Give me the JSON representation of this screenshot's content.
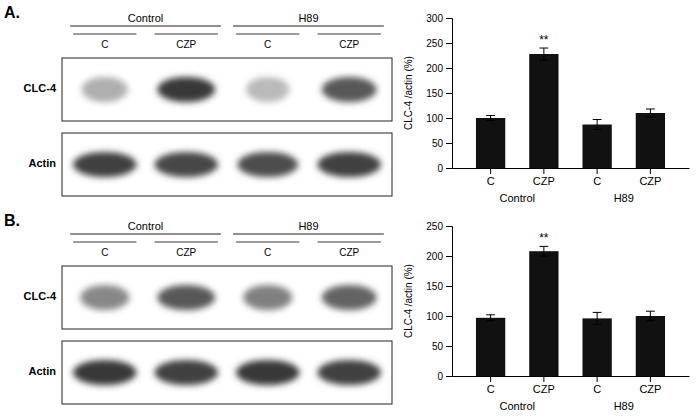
{
  "chart_data": [
    {
      "type": "western_blot",
      "title": "A.",
      "categories": [
        "C",
        "CZP",
        "C",
        "CZP"
      ],
      "group_labels": [
        "Control",
        "H89"
      ],
      "series": [
        {
          "name": "CLC-4",
          "values": [
            0.42,
            0.82,
            0.38,
            0.72
          ],
          "widths": [
            0.8,
            1.0,
            0.75,
            0.95
          ]
        },
        {
          "name": "Actin",
          "values": [
            0.8,
            0.78,
            0.76,
            0.8
          ],
          "widths": [
            1.1,
            1.1,
            1.05,
            1.1
          ]
        }
      ]
    },
    {
      "type": "bar",
      "categories": [
        "C",
        "CZP",
        "C",
        "CZP"
      ],
      "values": [
        100,
        228,
        87,
        110
      ],
      "errors": [
        5,
        12,
        10,
        8
      ],
      "color": "#111111",
      "group_labels": [
        "Control",
        "H89"
      ],
      "ylabel": "CLC-4 /actin (%)",
      "ylim": [
        0,
        300
      ],
      "yticks": [
        0,
        50,
        100,
        150,
        200,
        250,
        300
      ],
      "annotations": [
        {
          "text": "**",
          "index": 1
        }
      ],
      "grid": false
    },
    {
      "type": "western_blot",
      "title": "B.",
      "categories": [
        "C",
        "CZP",
        "C",
        "CZP"
      ],
      "group_labels": [
        "Control",
        "H89"
      ],
      "series": [
        {
          "name": "CLC-4",
          "values": [
            0.55,
            0.72,
            0.58,
            0.68
          ],
          "widths": [
            0.85,
            1.0,
            0.85,
            0.95
          ]
        },
        {
          "name": "Actin",
          "values": [
            0.82,
            0.8,
            0.82,
            0.8
          ],
          "widths": [
            1.1,
            1.1,
            1.1,
            1.1
          ]
        }
      ]
    },
    {
      "type": "bar",
      "categories": [
        "C",
        "CZP",
        "C",
        "CZP"
      ],
      "values": [
        97,
        208,
        96,
        100
      ],
      "errors": [
        5,
        8,
        10,
        8
      ],
      "color": "#111111",
      "group_labels": [
        "Control",
        "H89"
      ],
      "ylabel": "CLC-4 /actin (%)",
      "ylim": [
        0,
        250
      ],
      "yticks": [
        0,
        50,
        100,
        150,
        200,
        250
      ],
      "annotations": [
        {
          "text": "**",
          "index": 1
        }
      ],
      "grid": false
    }
  ]
}
